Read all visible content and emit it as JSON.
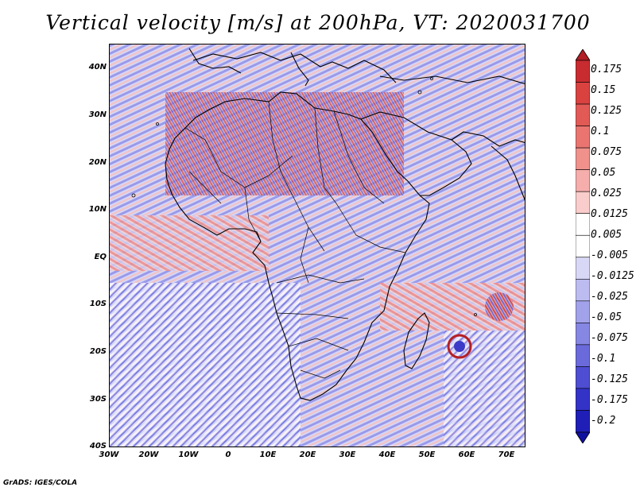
{
  "title": "Vertical velocity [m/s] at 200hPa, VT: 2020031700",
  "credit": "GrADS: IGES/COLA",
  "map": {
    "lon_range": [
      -30,
      75
    ],
    "lat_range": [
      -40,
      45
    ],
    "lat_labels": [
      "40N",
      "30N",
      "20N",
      "10N",
      "EQ",
      "10S",
      "20S",
      "30S",
      "40S"
    ],
    "lat_values": [
      40,
      30,
      20,
      10,
      0,
      -10,
      -20,
      -30,
      -40
    ],
    "lon_labels": [
      "30W",
      "20W",
      "10W",
      "0",
      "10E",
      "20E",
      "30E",
      "40E",
      "50E",
      "60E",
      "70E"
    ],
    "lon_values": [
      -30,
      -20,
      -10,
      0,
      10,
      20,
      30,
      40,
      50,
      60,
      70
    ],
    "field_colors": {
      "strong_pos": "#c1272d",
      "pos": "#f08080",
      "weak_pos": "#f7c3c3",
      "neutral": "#ffffff",
      "weak_neg": "#c9c9f5",
      "neg": "#8c8ce8",
      "strong_neg": "#2e2ec8",
      "coast": "#000000"
    }
  },
  "colorbar": {
    "labels": [
      "0.175",
      "0.15",
      "0.125",
      "0.1",
      "0.075",
      "0.05",
      "0.025",
      "0.0125",
      "0.005",
      "-0.005",
      "-0.0125",
      "-0.025",
      "-0.05",
      "-0.075",
      "-0.1",
      "-0.125",
      "-0.175",
      "-0.2"
    ],
    "colors": [
      "#b21f24",
      "#c82c30",
      "#d9423f",
      "#e25a55",
      "#ea7570",
      "#f0918c",
      "#f5aeab",
      "#f9cdcb",
      "#ffffff",
      "#ffffff",
      "#d8d8f6",
      "#bcbcf1",
      "#a2a2eb",
      "#8686e3",
      "#6a6adb",
      "#4e4ed2",
      "#3333c8",
      "#1f1fb8",
      "#1010a0"
    ]
  }
}
